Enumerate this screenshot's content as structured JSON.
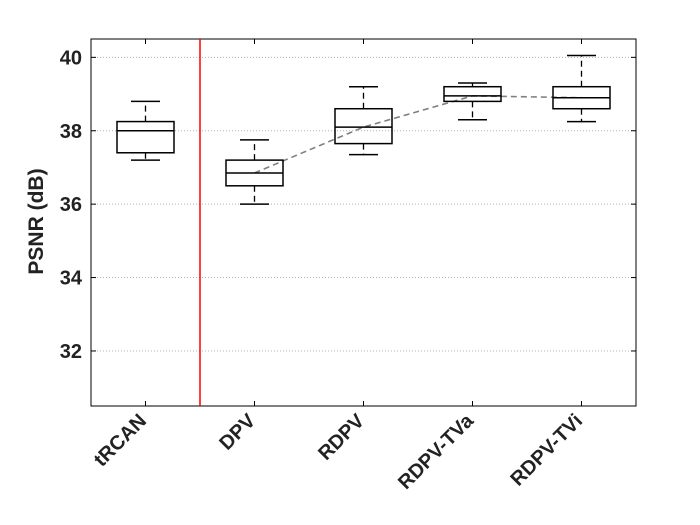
{
  "chart_data": {
    "type": "box",
    "title": "",
    "xlabel": "",
    "ylabel": "PSNR (dB)",
    "ylim": [
      30.5,
      40.5
    ],
    "yticks": [
      32,
      34,
      36,
      38,
      40
    ],
    "categories": [
      "tRCAN",
      "DPV",
      "RDPV",
      "RDPV-TVa",
      "RDPV-TVi"
    ],
    "boxes": [
      {
        "name": "tRCAN",
        "min": 37.2,
        "q1": 37.4,
        "median": 38.0,
        "q3": 38.25,
        "max": 38.8
      },
      {
        "name": "DPV",
        "min": 36.0,
        "q1": 36.5,
        "median": 36.85,
        "q3": 37.2,
        "max": 37.75
      },
      {
        "name": "RDPV",
        "min": 37.35,
        "q1": 37.65,
        "median": 38.1,
        "q3": 38.6,
        "max": 39.2
      },
      {
        "name": "RDPV-TVa",
        "min": 38.3,
        "q1": 38.8,
        "median": 38.95,
        "q3": 39.2,
        "max": 39.3
      },
      {
        "name": "RDPV-TVi",
        "min": 38.25,
        "q1": 38.6,
        "median": 38.9,
        "q3": 39.2,
        "max": 40.05
      }
    ],
    "trend_line": {
      "categories": [
        "DPV",
        "RDPV",
        "RDPV-TVa",
        "RDPV-TVi"
      ],
      "values": [
        36.85,
        38.1,
        38.95,
        38.9
      ],
      "style": "dashed",
      "color": "#808080"
    },
    "separator": {
      "after_category": "tRCAN",
      "color": "#ff0000"
    },
    "grid": "horizontal dotted"
  }
}
